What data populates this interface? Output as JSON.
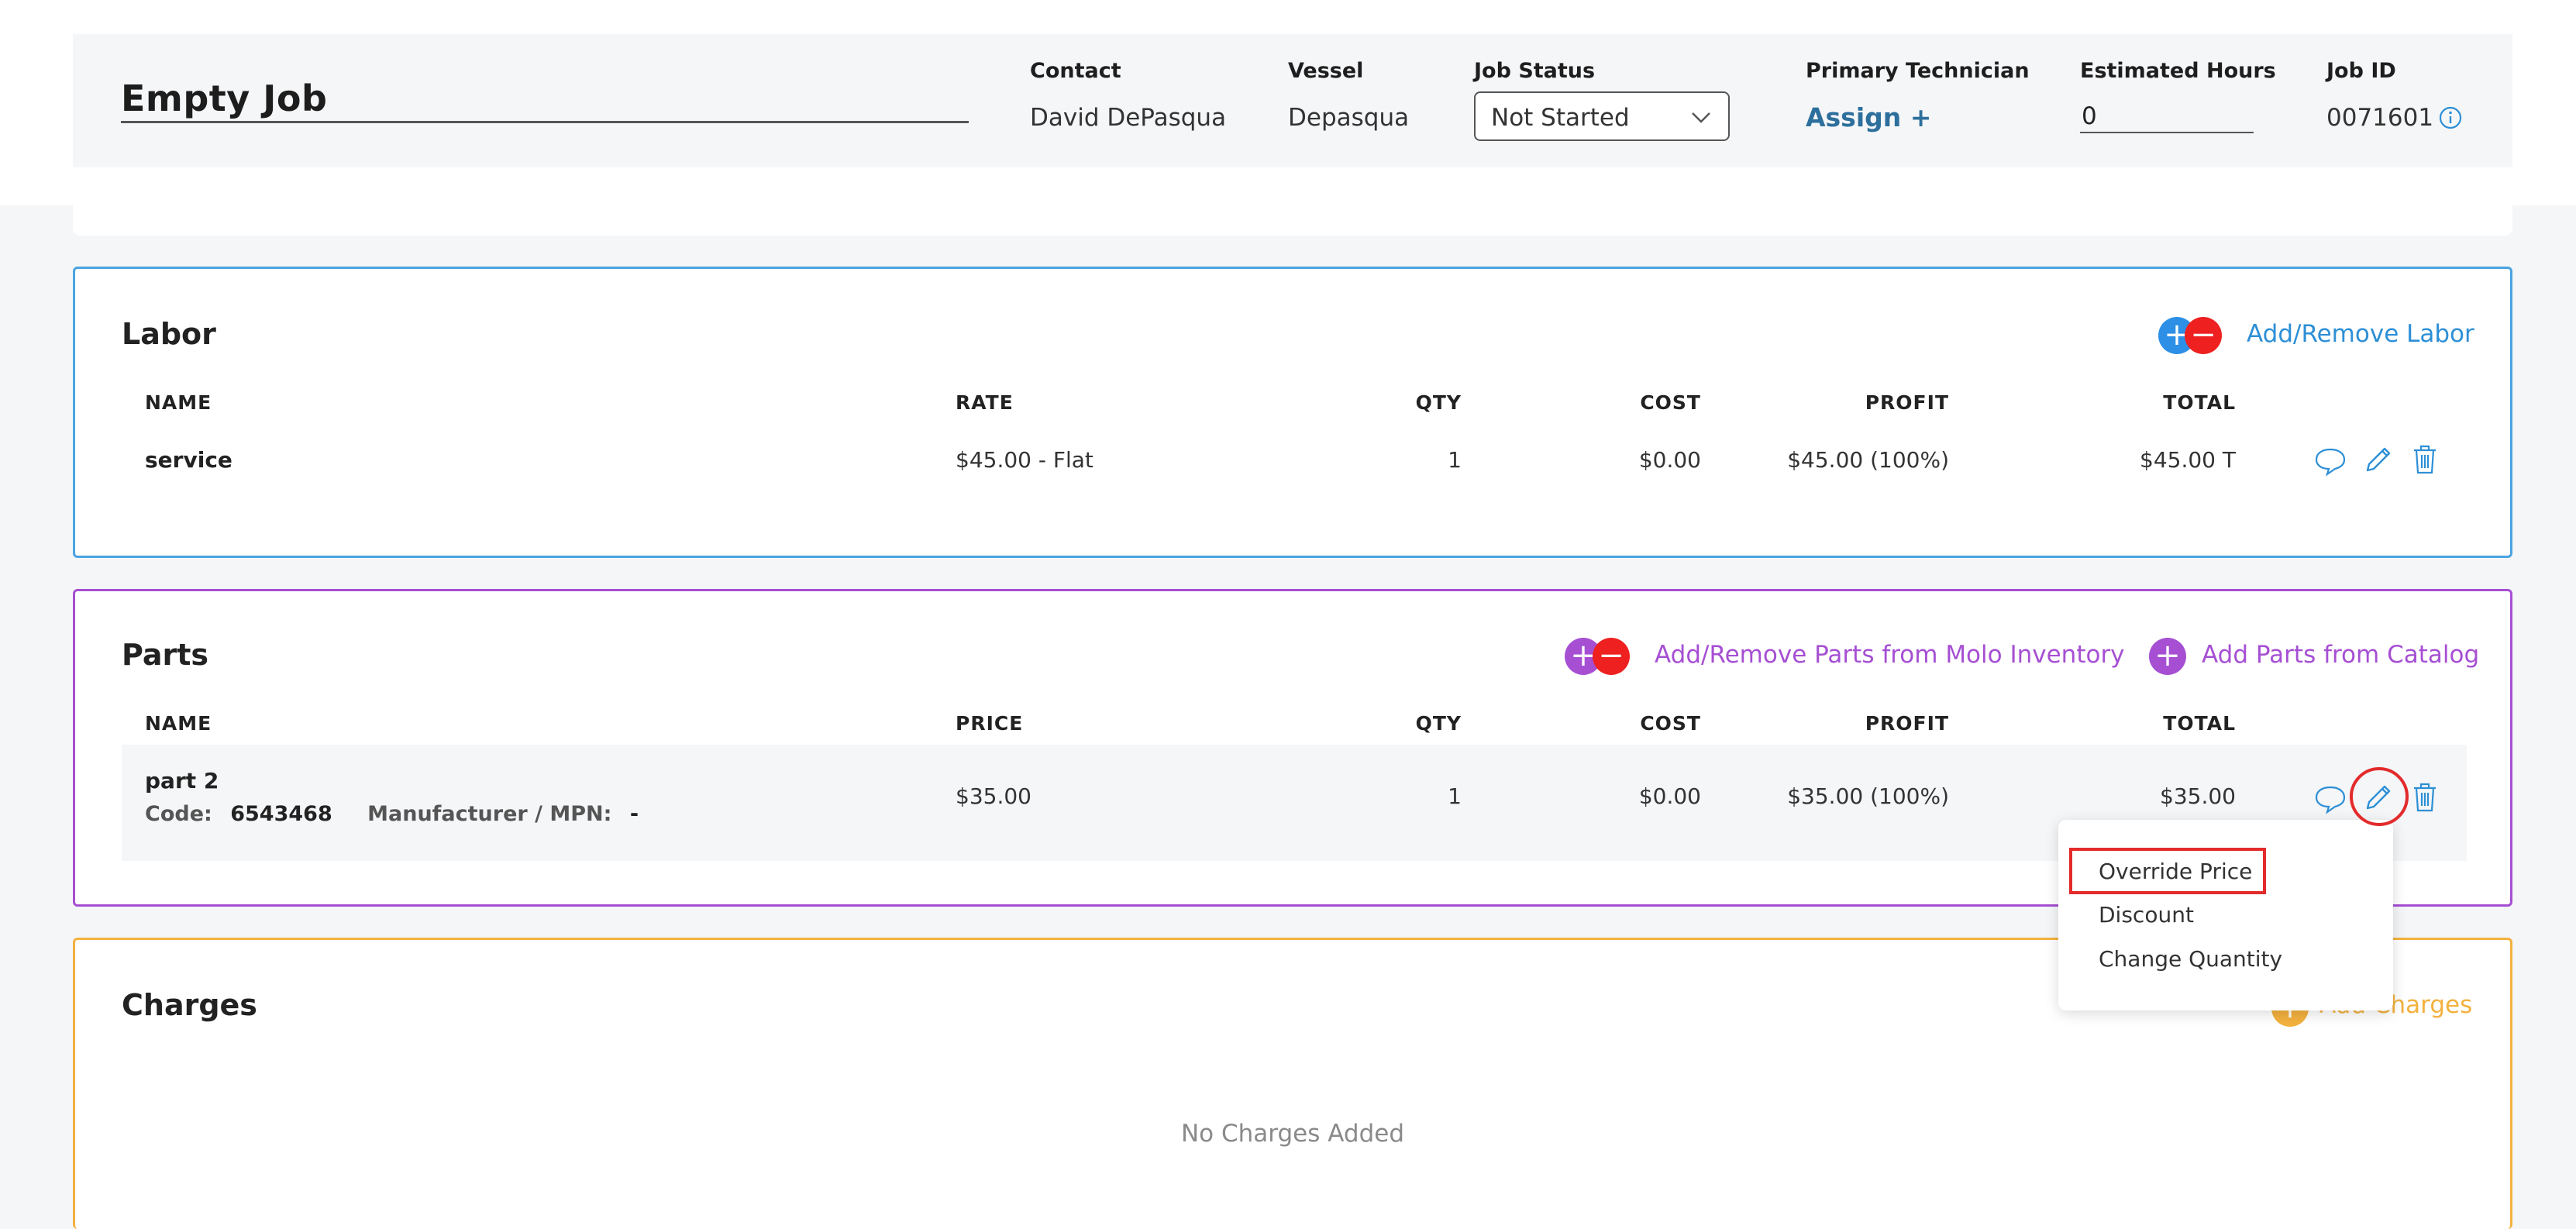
{
  "job": {
    "title": "Empty Job",
    "contact_label": "Contact",
    "contact_value": "David DePasqua",
    "vessel_label": "Vessel",
    "vessel_value": "Depasqua",
    "status_label": "Job Status",
    "status_value": "Not Started",
    "technician_label": "Primary Technician",
    "assign_label": "Assign +",
    "hours_label": "Estimated Hours",
    "hours_value": "0",
    "jobid_label": "Job ID",
    "jobid_value": "0071601"
  },
  "labor": {
    "title": "Labor",
    "action_label": "Add/Remove Labor",
    "columns": [
      "NAME",
      "RATE",
      "QTY",
      "COST",
      "PROFIT",
      "TOTAL"
    ],
    "rows": [
      {
        "name": "service",
        "rate": "$45.00 - Flat",
        "qty": "1",
        "cost": "$0.00",
        "profit": "$45.00 (100%)",
        "total": "$45.00 T"
      }
    ]
  },
  "parts": {
    "title": "Parts",
    "inventory_action": "Add/Remove Parts from Molo Inventory",
    "catalog_action": "Add Parts from Catalog",
    "columns": [
      "NAME",
      "PRICE",
      "QTY",
      "COST",
      "PROFIT",
      "TOTAL"
    ],
    "rows": [
      {
        "name": "part 2",
        "code_label": "Code:",
        "code_value": "6543468",
        "mpn_label": "Manufacturer / MPN:",
        "mpn_value": "-",
        "price": "$35.00",
        "qty": "1",
        "cost": "$0.00",
        "profit": "$35.00 (100%)",
        "total": "$35.00"
      }
    ]
  },
  "edit_menu": {
    "items": [
      "Override Price",
      "Discount",
      "Change Quantity"
    ]
  },
  "charges": {
    "title": "Charges",
    "action_label": "Add Charges",
    "empty_text": "No Charges Added"
  },
  "colors": {
    "labor_accent": "#4aa3e0",
    "parts_accent": "#a64fd3",
    "charges_accent": "#f3b13e",
    "highlight": "#e32b2b"
  },
  "icons": [
    "info-icon",
    "chevron-down-icon",
    "comment-icon",
    "pencil-icon",
    "trash-icon",
    "plus-icon",
    "minus-icon"
  ]
}
